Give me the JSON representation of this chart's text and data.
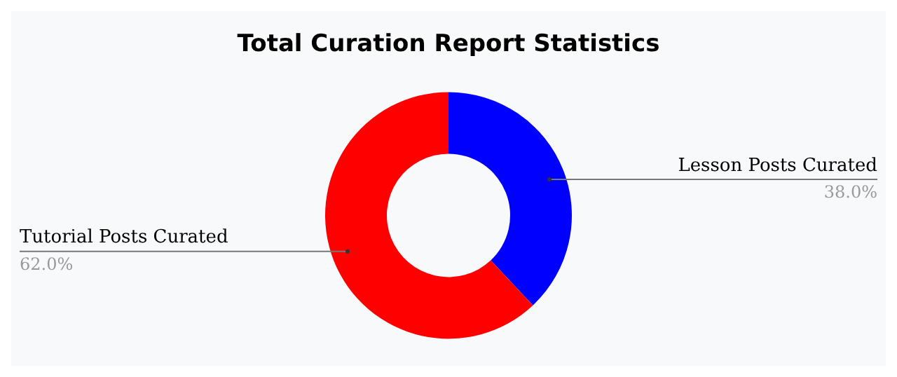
{
  "chart_data": {
    "type": "donut",
    "title": "Total Curation Report Statistics",
    "categories": [
      "Lesson Posts Curated",
      "Tutorial Posts Curated"
    ],
    "values": [
      38.0,
      62.0
    ],
    "value_labels": [
      "38.0%",
      "62.0%"
    ],
    "colors": [
      "#0000ff",
      "#ff0000"
    ],
    "legend": false
  }
}
